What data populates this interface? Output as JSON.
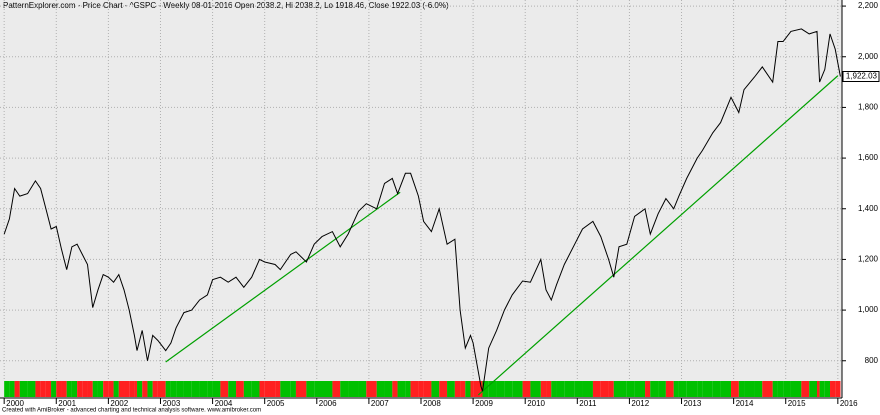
{
  "chart_data": {
    "type": "line",
    "title": "PatternExplorer.com - Price Chart - ^GSPC - Weekly 08-01-2016 Open 2038.2, Hi 2038.2, Lo 1918.46, Close 1922.03 (-6.0%)",
    "footer": "Created with AmiBroker - advanced charting and technical analysis software. www.amibroker.com",
    "color": "#000000",
    "x": [
      2000.0,
      2000.1,
      2000.2,
      2000.3,
      2000.45,
      2000.6,
      2000.7,
      2000.8,
      2000.9,
      2001.0,
      2001.1,
      2001.2,
      2001.3,
      2001.4,
      2001.5,
      2001.6,
      2001.7,
      2001.8,
      2001.9,
      2002.0,
      2002.1,
      2002.2,
      2002.3,
      2002.4,
      2002.5,
      2002.55,
      2002.65,
      2002.75,
      2002.85,
      2002.95,
      2003.1,
      2003.2,
      2003.3,
      2003.45,
      2003.6,
      2003.75,
      2003.9,
      2004.0,
      2004.15,
      2004.3,
      2004.45,
      2004.6,
      2004.75,
      2004.9,
      2005.0,
      2005.2,
      2005.3,
      2005.5,
      2005.6,
      2005.8,
      2005.95,
      2006.1,
      2006.3,
      2006.45,
      2006.6,
      2006.8,
      2006.95,
      2007.15,
      2007.3,
      2007.45,
      2007.55,
      2007.7,
      2007.8,
      2007.95,
      2008.05,
      2008.2,
      2008.35,
      2008.5,
      2008.65,
      2008.75,
      2008.85,
      2008.95,
      2009.0,
      2009.15,
      2009.18,
      2009.3,
      2009.45,
      2009.6,
      2009.75,
      2009.95,
      2010.1,
      2010.3,
      2010.4,
      2010.5,
      2010.6,
      2010.75,
      2010.95,
      2011.1,
      2011.3,
      2011.45,
      2011.6,
      2011.7,
      2011.8,
      2011.95,
      2012.1,
      2012.3,
      2012.4,
      2012.55,
      2012.7,
      2012.85,
      2012.95,
      2013.1,
      2013.3,
      2013.4,
      2013.6,
      2013.75,
      2013.95,
      2014.1,
      2014.2,
      2014.4,
      2014.55,
      2014.75,
      2014.85,
      2014.95,
      2015.1,
      2015.3,
      2015.45,
      2015.6,
      2015.65,
      2015.75,
      2015.85,
      2015.95,
      2016.05
    ],
    "values": [
      1300,
      1360,
      1480,
      1450,
      1460,
      1510,
      1480,
      1400,
      1320,
      1330,
      1240,
      1160,
      1250,
      1260,
      1220,
      1180,
      1010,
      1080,
      1140,
      1130,
      1110,
      1140,
      1080,
      1000,
      900,
      840,
      920,
      800,
      900,
      880,
      840,
      870,
      930,
      990,
      1000,
      1040,
      1060,
      1120,
      1130,
      1110,
      1130,
      1090,
      1130,
      1200,
      1190,
      1180,
      1160,
      1220,
      1230,
      1190,
      1260,
      1290,
      1310,
      1250,
      1300,
      1390,
      1420,
      1400,
      1500,
      1520,
      1460,
      1540,
      1540,
      1450,
      1350,
      1310,
      1400,
      1260,
      1280,
      1000,
      850,
      900,
      870,
      700,
      680,
      850,
      920,
      1000,
      1060,
      1115,
      1110,
      1200,
      1080,
      1040,
      1100,
      1180,
      1260,
      1320,
      1350,
      1290,
      1200,
      1130,
      1250,
      1260,
      1370,
      1400,
      1300,
      1380,
      1440,
      1400,
      1450,
      1520,
      1600,
      1630,
      1700,
      1740,
      1840,
      1780,
      1870,
      1920,
      1960,
      1900,
      2060,
      2060,
      2100,
      2110,
      2090,
      2100,
      1900,
      1950,
      2090,
      2030,
      1922.03
    ],
    "last_value_label": "1,922.03",
    "trendlines": [
      {
        "color": "#00a000",
        "x": [
          2003.1,
          2007.6
        ],
        "values": [
          795,
          1465
        ]
      },
      {
        "color": "#00a000",
        "x": [
          2009.1,
          2016.0
        ],
        "values": [
          665,
          1925
        ]
      }
    ],
    "up_color": "#00c000",
    "down_color": "#ff2020",
    "xlim": [
      1999.92,
      2016.08
    ],
    "xticks": [
      2000,
      2001,
      2002,
      2003,
      2004,
      2005,
      2006,
      2007,
      2008,
      2009,
      2010,
      2011,
      2012,
      2013,
      2014,
      2015,
      2016
    ],
    "ylim": [
      653,
      2224
    ],
    "yticks": [
      800,
      {
        "value": 1000,
        "label": "1,000"
      },
      {
        "value": 1200,
        "label": "1,200"
      },
      {
        "value": 1400,
        "label": "1,400"
      },
      {
        "value": 1600,
        "label": "1,600"
      },
      {
        "value": 1800,
        "label": "1,800"
      },
      {
        "value": 2000,
        "label": "2,000"
      },
      {
        "value": 2200,
        "label": "2,200"
      }
    ],
    "grid": true
  }
}
